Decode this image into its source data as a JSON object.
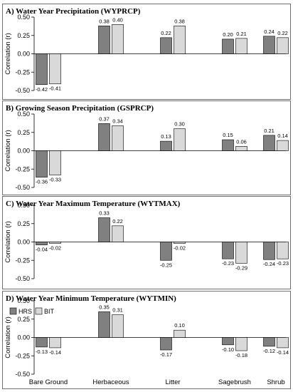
{
  "categories": [
    "Bare Ground",
    "Herbaceous",
    "Litter",
    "Sagebrush",
    "Shrub"
  ],
  "legend": [
    {
      "name": "HRS",
      "color": "#808080"
    },
    {
      "name": "BIT",
      "color": "#d9d9d9"
    }
  ],
  "chart_data": [
    {
      "type": "bar",
      "title": "A) Water Year Precipitation (WYPRCP)",
      "ylabel": "Correlation (r)",
      "ylim": [
        -0.5,
        0.5
      ],
      "yticks": [
        "0.50",
        "0.25",
        "0.00",
        "-0.25",
        "-0.50"
      ],
      "categories": [
        "Bare Ground",
        "Herbaceous",
        "Litter",
        "Sagebrush",
        "Shrub"
      ],
      "series": [
        {
          "name": "HRS",
          "values": [
            -0.42,
            0.38,
            0.22,
            0.2,
            0.24
          ],
          "labels": [
            "-0.42",
            "0.38",
            "0.22",
            "0.20",
            "0.24"
          ]
        },
        {
          "name": "BIT",
          "values": [
            -0.41,
            0.4,
            0.38,
            0.21,
            0.22
          ],
          "labels": [
            "-0.41",
            "0.40",
            "0.38",
            "0.21",
            "0.22"
          ]
        }
      ]
    },
    {
      "type": "bar",
      "title": "B) Growing Season Precipitation (GSPRCP)",
      "ylabel": "Correlation (r)",
      "ylim": [
        -0.5,
        0.5
      ],
      "yticks": [
        "0.50",
        "0.25",
        "0.00",
        "-0.25",
        "-0.50"
      ],
      "categories": [
        "Bare Ground",
        "Herbaceous",
        "Litter",
        "Sagebrush",
        "Shrub"
      ],
      "series": [
        {
          "name": "HRS",
          "values": [
            -0.36,
            0.37,
            0.13,
            0.15,
            0.21
          ],
          "labels": [
            "-0.36",
            "0.37",
            "0.13",
            "0.15",
            "0.21"
          ]
        },
        {
          "name": "BIT",
          "values": [
            -0.33,
            0.34,
            0.3,
            0.06,
            0.14
          ],
          "labels": [
            "-0.33",
            "0.34",
            "0.30",
            "0.06",
            "0.14"
          ]
        }
      ]
    },
    {
      "type": "bar",
      "title": "C) Water Year Maximum Temperature (WYTMAX)",
      "ylabel": "Correlation (r)",
      "ylim": [
        -0.5,
        0.5
      ],
      "yticks": [
        "0.50",
        "0.25",
        "0.00",
        "-0.25",
        "-0.50"
      ],
      "categories": [
        "Bare Ground",
        "Herbaceous",
        "Litter",
        "Sagebrush",
        "Shrub"
      ],
      "series": [
        {
          "name": "HRS",
          "values": [
            -0.04,
            0.33,
            -0.25,
            -0.23,
            -0.24
          ],
          "labels": [
            "-0.04",
            "0.33",
            "-0.25",
            "-0.23",
            "-0.24"
          ]
        },
        {
          "name": "BIT",
          "values": [
            -0.02,
            0.22,
            -0.02,
            -0.29,
            -0.23
          ],
          "labels": [
            "-0.02",
            "0.22",
            "-0.02",
            "-0.29",
            "-0.23"
          ]
        }
      ]
    },
    {
      "type": "bar",
      "title": "D) Water Year Minimum Temperature (WYTMIN)",
      "ylabel": "Correlation (r)",
      "ylim": [
        -0.5,
        0.5
      ],
      "yticks": [
        "0.50",
        "0.25",
        "0.00",
        "-0.25",
        "-0.50"
      ],
      "categories": [
        "Bare Ground",
        "Herbaceous",
        "Litter",
        "Sagebrush",
        "Shrub"
      ],
      "legend_shown": true,
      "series": [
        {
          "name": "HRS",
          "values": [
            -0.13,
            0.35,
            -0.17,
            -0.1,
            -0.12
          ],
          "labels": [
            "-0.13",
            "0.35",
            "-0.17",
            "-0.10",
            "-0.12"
          ]
        },
        {
          "name": "BIT",
          "values": [
            -0.14,
            0.31,
            0.1,
            -0.18,
            -0.14
          ],
          "labels": [
            "-0.14",
            "0.31",
            "0.10",
            "-0.18",
            "-0.14"
          ]
        }
      ]
    }
  ]
}
